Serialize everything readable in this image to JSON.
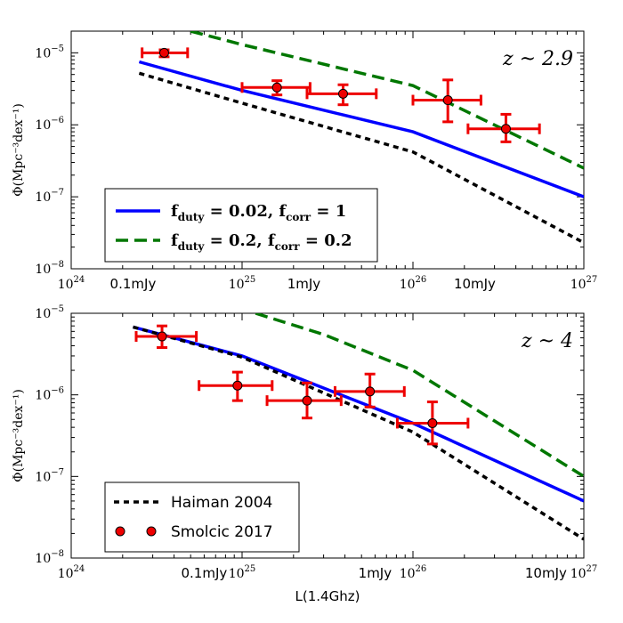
{
  "chart_data": [
    {
      "type": "line",
      "panel": "top",
      "annotation": "z ~ 2.9",
      "xlabel": "",
      "ylabel": "Φ(Mpc⁻³dex⁻¹)",
      "xscale": "log",
      "yscale": "log",
      "xlim": [
        1e+24,
        1e+27
      ],
      "ylim": [
        1e-08,
        2e-05
      ],
      "x_ticks": [
        "10^24",
        "10^25",
        "10^26",
        "10^27"
      ],
      "y_ticks": [
        "10^-8",
        "10^-7",
        "10^-6",
        "10^-5"
      ],
      "flux_markers": [
        {
          "label": "0.1mJy",
          "x": 2.3e+24
        },
        {
          "label": "1mJy",
          "x": 2.3e+25
        },
        {
          "label": "10mJy",
          "x": 2.3e+26
        }
      ],
      "series": [
        {
          "name": "f_duty = 0.02, f_corr = 1",
          "color": "#0000ff",
          "style": "solid",
          "x": [
            2.5e+24,
            1e+25,
            1e+26,
            1e+27
          ],
          "y": [
            7.5e-06,
            3e-06,
            8e-07,
            1e-07
          ]
        },
        {
          "name": "f_duty = 0.2, f_corr = 0.2",
          "color": "#007700",
          "style": "dashed",
          "x": [
            5e+24,
            1e+25,
            1e+26,
            1e+27
          ],
          "y": [
            2e-05,
            1.3e-05,
            3.5e-06,
            2.5e-07
          ]
        },
        {
          "name": "Haiman 2004",
          "color": "#000000",
          "style": "dotted",
          "x": [
            2.5e+24,
            1e+25,
            1e+26,
            1e+27
          ],
          "y": [
            5.2e-06,
            2e-06,
            4.2e-07,
            2.3e-08
          ]
        }
      ],
      "points": {
        "name": "Smolcic 2017",
        "color": "#ee0000",
        "x": [
          3.5e+24,
          1.6e+25,
          3.9e+25,
          1.6e+26,
          3.5e+26
        ],
        "xerr_low": [
          2.6e+24,
          1e+25,
          2.4e+25,
          1e+26,
          2.1e+26
        ],
        "xerr_high": [
          4.8e+24,
          2.5e+25,
          6.1e+25,
          2.5e+26,
          5.5e+26
        ],
        "y": [
          1e-05,
          3.3e-06,
          2.7e-06,
          2.2e-06,
          8.8e-07
        ],
        "yerr_low": [
          8.8e-06,
          2.6e-06,
          1.9e-06,
          1.1e-06,
          5.8e-07
        ],
        "yerr_high": [
          1.1e-05,
          4.1e-06,
          3.6e-06,
          4.2e-06,
          1.4e-06
        ]
      },
      "legend": [
        {
          "label_main": "f",
          "label_sub1": "duty",
          "eq1": " = 0.02, f",
          "label_sub2": "corr",
          "eq2": " = 1",
          "style": "solid",
          "color": "#0000ff"
        },
        {
          "label_main": "f",
          "label_sub1": "duty",
          "eq1": " = 0.2, f",
          "label_sub2": "corr",
          "eq2": " = 0.2",
          "style": "dashed",
          "color": "#007700"
        }
      ]
    },
    {
      "type": "line",
      "panel": "bottom",
      "annotation": "z ~ 4",
      "xlabel": "L(1.4Ghz)",
      "ylabel": "Φ(Mpc⁻³dex⁻¹)",
      "xscale": "log",
      "yscale": "log",
      "xlim": [
        1e+24,
        1e+27
      ],
      "ylim": [
        1e-08,
        1e-05
      ],
      "x_ticks": [
        "10^24",
        "10^25",
        "10^26",
        "10^27"
      ],
      "y_ticks": [
        "10^-8",
        "10^-7",
        "10^-6",
        "10^-5"
      ],
      "flux_markers": [
        {
          "label": "0.1mJy",
          "x": 6e+24
        },
        {
          "label": "1mJy",
          "x": 6e+25
        },
        {
          "label": "10mJy",
          "x": 6e+26
        }
      ],
      "series": [
        {
          "name": "f_duty = 0.02, f_corr = 1",
          "color": "#0000ff",
          "style": "solid",
          "x": [
            2.3e+24,
            1e+25,
            1e+26,
            1e+27
          ],
          "y": [
            6.8e-06,
            3e-06,
            4.5e-07,
            5e-08
          ]
        },
        {
          "name": "f_duty = 0.2, f_corr = 0.2",
          "color": "#007700",
          "style": "dashed",
          "x": [
            1.2e+25,
            3e+25,
            1e+26,
            1e+27
          ],
          "y": [
            1e-05,
            5.5e-06,
            2e-06,
            1e-07
          ]
        },
        {
          "name": "Haiman 2004",
          "color": "#000000",
          "style": "dotted",
          "x": [
            2.3e+24,
            1e+25,
            1e+26,
            1e+27
          ],
          "y": [
            6.8e-06,
            2.9e-06,
            3.5e-07,
            1.7e-08
          ]
        }
      ],
      "points": {
        "name": "Smolcic 2017",
        "color": "#ee0000",
        "x": [
          3.4e+24,
          9.4e+24,
          2.4e+25,
          5.6e+25,
          1.3e+26
        ],
        "xerr_low": [
          2.4e+24,
          5.6e+24,
          1.4e+25,
          3.5e+25,
          8.1e+25
        ],
        "xerr_high": [
          5.4e+24,
          1.5e+25,
          3.8e+25,
          8.9e+25,
          2.1e+26
        ],
        "y": [
          5.2e-06,
          1.3e-06,
          8.5e-07,
          1.1e-06,
          4.5e-07
        ],
        "yerr_low": [
          3.8e-06,
          8.5e-07,
          5.2e-07,
          7.1e-07,
          2.5e-07
        ],
        "yerr_high": [
          7e-06,
          1.9e-06,
          1.4e-06,
          1.8e-06,
          8.2e-07
        ]
      },
      "legend": [
        {
          "label": "Haiman 2004",
          "style": "dotted",
          "color": "#000000"
        },
        {
          "label": "Smolcic 2017",
          "style": "points",
          "color": "#ee0000"
        }
      ]
    }
  ]
}
